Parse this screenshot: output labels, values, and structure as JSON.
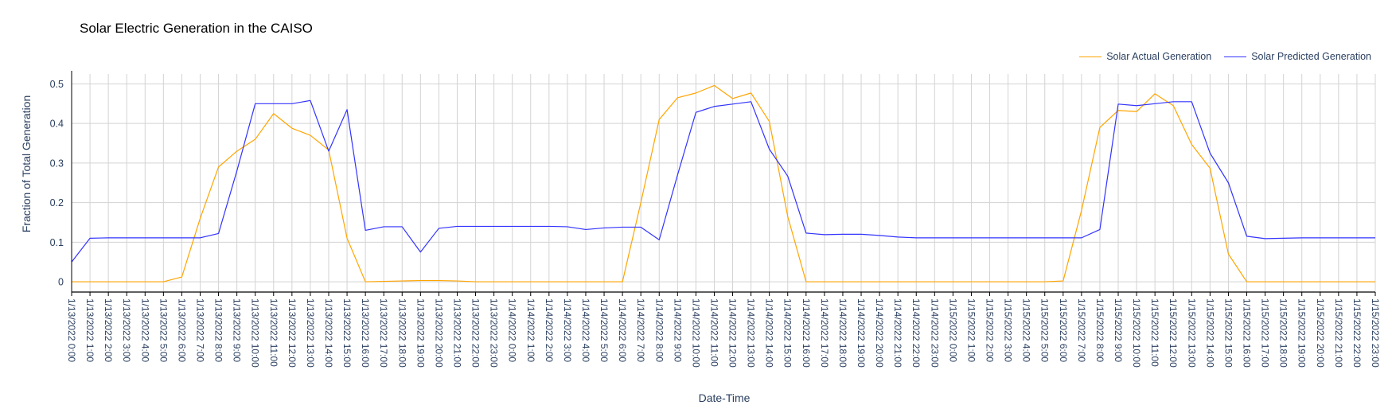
{
  "chart_data": {
    "type": "line",
    "title": "Solar Electric Generation in the CAISO",
    "xlabel": "Date-Time",
    "ylabel": "Fraction of Total Generation",
    "ylim": [
      -0.026,
      0.525
    ],
    "yticks": [
      0,
      0.1,
      0.2,
      0.3,
      0.4,
      0.5
    ],
    "ytick_labels": [
      "0",
      "0.1",
      "0.2",
      "0.3",
      "0.4",
      "0.5"
    ],
    "grid": true,
    "legend_position": "top-right",
    "x": [
      "1/13/2022 0:00",
      "1/13/2022 1:00",
      "1/13/2022 2:00",
      "1/13/2022 3:00",
      "1/13/2022 4:00",
      "1/13/2022 5:00",
      "1/13/2022 6:00",
      "1/13/2022 7:00",
      "1/13/2022 8:00",
      "1/13/2022 9:00",
      "1/13/2022 10:00",
      "1/13/2022 11:00",
      "1/13/2022 12:00",
      "1/13/2022 13:00",
      "1/13/2022 14:00",
      "1/13/2022 15:00",
      "1/13/2022 16:00",
      "1/13/2022 17:00",
      "1/13/2022 18:00",
      "1/13/2022 19:00",
      "1/13/2022 20:00",
      "1/13/2022 21:00",
      "1/13/2022 22:00",
      "1/13/2022 23:00",
      "1/14/2022 0:00",
      "1/14/2022 1:00",
      "1/14/2022 2:00",
      "1/14/2022 3:00",
      "1/14/2022 4:00",
      "1/14/2022 5:00",
      "1/14/2022 6:00",
      "1/14/2022 7:00",
      "1/14/2022 8:00",
      "1/14/2022 9:00",
      "1/14/2022 10:00",
      "1/14/2022 11:00",
      "1/14/2022 12:00",
      "1/14/2022 13:00",
      "1/14/2022 14:00",
      "1/14/2022 15:00",
      "1/14/2022 16:00",
      "1/14/2022 17:00",
      "1/14/2022 18:00",
      "1/14/2022 19:00",
      "1/14/2022 20:00",
      "1/14/2022 21:00",
      "1/14/2022 22:00",
      "1/14/2022 23:00",
      "1/15/2022 0:00",
      "1/15/2022 1:00",
      "1/15/2022 2:00",
      "1/15/2022 3:00",
      "1/15/2022 4:00",
      "1/15/2022 5:00",
      "1/15/2022 6:00",
      "1/15/2022 7:00",
      "1/15/2022 8:00",
      "1/15/2022 9:00",
      "1/15/2022 10:00",
      "1/15/2022 11:00",
      "1/15/2022 12:00",
      "1/15/2022 13:00",
      "1/15/2022 14:00",
      "1/15/2022 15:00",
      "1/15/2022 16:00",
      "1/15/2022 17:00",
      "1/15/2022 18:00",
      "1/15/2022 19:00",
      "1/15/2022 20:00",
      "1/15/2022 21:00",
      "1/15/2022 22:00",
      "1/15/2022 23:00"
    ],
    "series": [
      {
        "name": "Solar Actual Generation",
        "color": "#FFA500",
        "values": [
          0,
          0,
          0,
          0,
          0,
          0,
          0.012,
          0.16,
          0.29,
          0.33,
          0.36,
          0.425,
          0.388,
          0.37,
          0.333,
          0.11,
          0,
          0.001,
          0.002,
          0.003,
          0.003,
          0.002,
          0,
          0,
          0,
          0,
          0,
          0,
          0,
          0,
          0,
          0.2,
          0.41,
          0.465,
          0.477,
          0.496,
          0.463,
          0.477,
          0.405,
          0.165,
          0,
          0,
          0,
          0,
          0,
          0,
          0,
          0,
          0,
          0,
          0,
          0,
          0,
          0,
          0.002,
          0.18,
          0.39,
          0.433,
          0.43,
          0.475,
          0.445,
          0.347,
          0.287,
          0.07,
          0,
          0,
          0,
          0,
          0,
          0,
          0,
          0
        ]
      },
      {
        "name": "Solar Predicted Generation",
        "color": "#3333FF",
        "values": [
          0.05,
          0.11,
          0.111,
          0.111,
          0.111,
          0.111,
          0.111,
          0.111,
          0.122,
          0.28,
          0.45,
          0.45,
          0.45,
          0.458,
          0.33,
          0.435,
          0.13,
          0.139,
          0.139,
          0.075,
          0.135,
          0.14,
          0.14,
          0.14,
          0.14,
          0.14,
          0.14,
          0.139,
          0.132,
          0.136,
          0.138,
          0.138,
          0.106,
          0.27,
          0.428,
          0.443,
          0.449,
          0.455,
          0.335,
          0.267,
          0.123,
          0.119,
          0.12,
          0.12,
          0.117,
          0.113,
          0.111,
          0.111,
          0.111,
          0.111,
          0.111,
          0.111,
          0.111,
          0.111,
          0.111,
          0.111,
          0.132,
          0.449,
          0.445,
          0.45,
          0.455,
          0.455,
          0.325,
          0.25,
          0.115,
          0.109,
          0.11,
          0.111,
          0.111,
          0.111,
          0.111,
          0.111
        ]
      }
    ]
  }
}
